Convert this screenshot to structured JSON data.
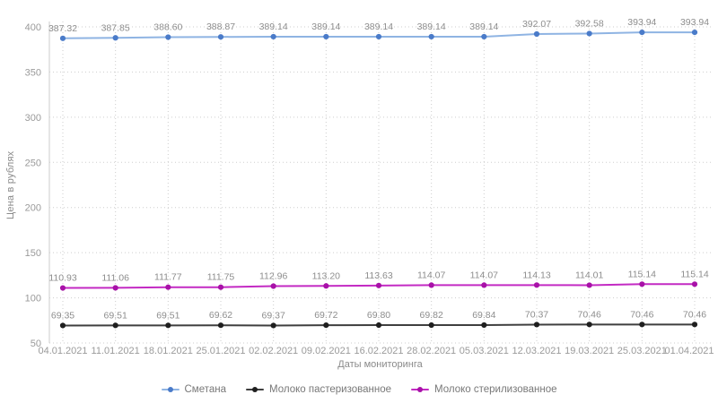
{
  "chart_data": {
    "type": "line",
    "title": "",
    "xlabel": "Даты мониторинга",
    "ylabel": "Цена в рублях",
    "x": [
      "04.01.2021",
      "11.01.2021",
      "18.01.2021",
      "25.01.2021",
      "02.02.2021",
      "09.02.2021",
      "16.02.2021",
      "28.02.2021",
      "05.03.2021",
      "12.03.2021",
      "19.03.2021",
      "25.03.2021",
      "01.04.2021"
    ],
    "series": [
      {
        "name": "Сметана",
        "color": "#4a7bc9",
        "line_color": "#8fb4e3",
        "values": [
          387.32,
          387.85,
          388.6,
          388.87,
          389.14,
          389.14,
          389.14,
          389.14,
          389.14,
          392.07,
          392.58,
          393.94,
          393.94
        ]
      },
      {
        "name": "Молоко пастеризованное",
        "color": "#1f1f1f",
        "line_color": "#3f3f3f",
        "values": [
          69.35,
          69.51,
          69.51,
          69.62,
          69.37,
          69.72,
          69.8,
          69.82,
          69.84,
          70.37,
          70.46,
          70.46,
          70.46
        ]
      },
      {
        "name": "Молоко стерилизованное",
        "color": "#a811a8",
        "line_color": "#c32ac3",
        "values": [
          110.93,
          111.06,
          111.77,
          111.75,
          112.96,
          113.2,
          113.63,
          114.07,
          114.07,
          114.13,
          114.01,
          115.14,
          115.14
        ]
      }
    ],
    "ylim": [
      50,
      400
    ],
    "yticks": [
      50,
      100,
      150,
      200,
      250,
      300,
      350,
      400
    ],
    "grid": true,
    "legend_position": "bottom",
    "value_labels": true,
    "value_label_color": "#8d8d8d",
    "tick_label_color": "#9a9a9a",
    "grid_color": "#cdcdcd",
    "axis_line_color": "#cccccc"
  }
}
